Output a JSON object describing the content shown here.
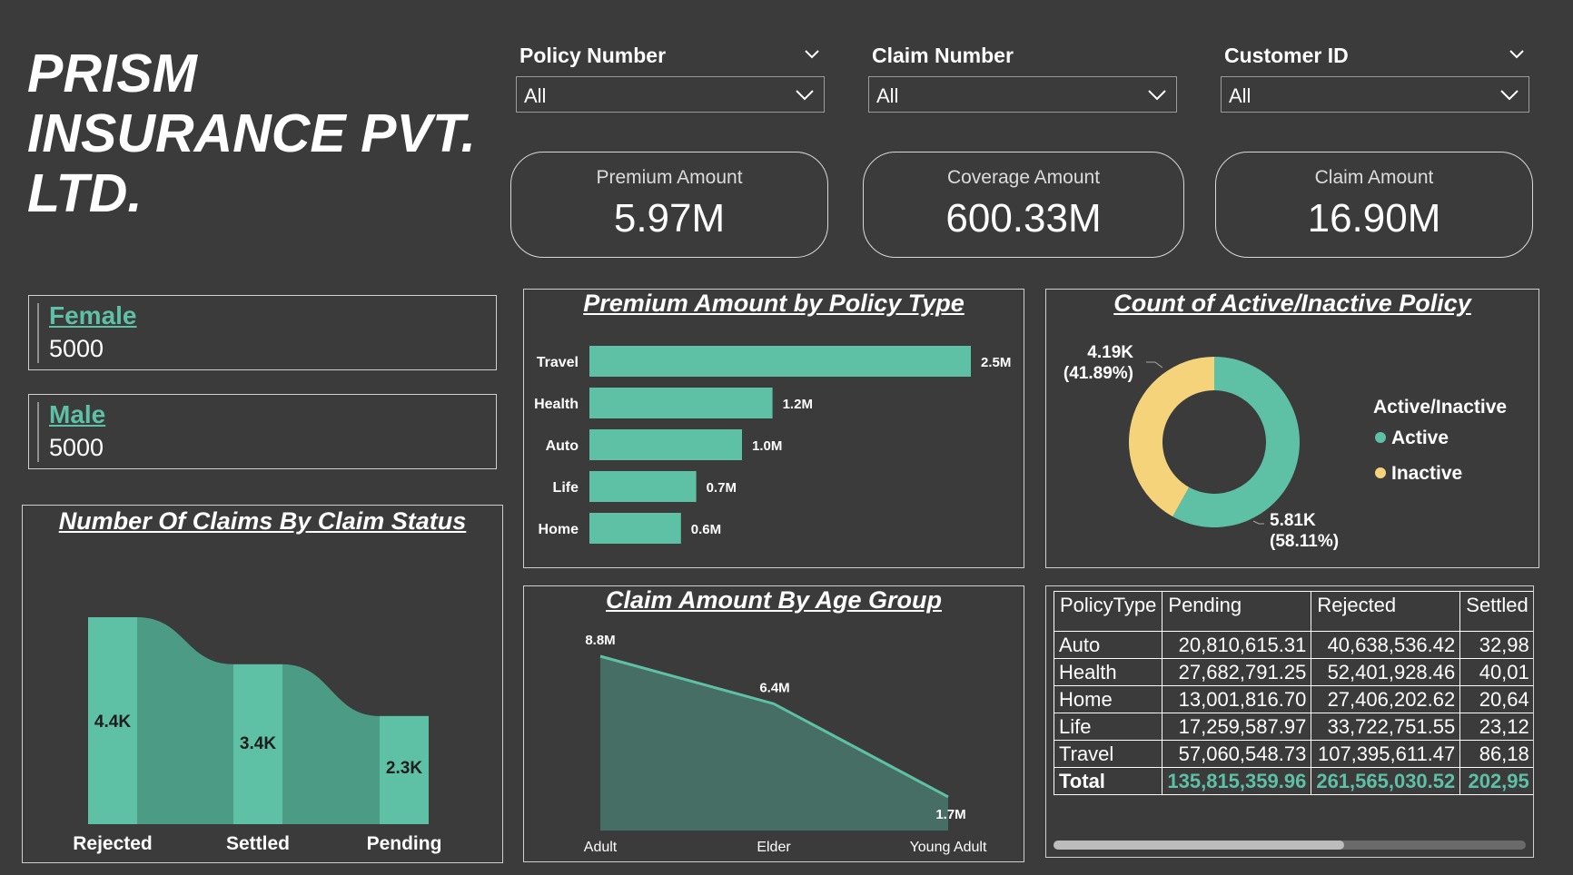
{
  "brand": {
    "line1": "PRISM",
    "line2": "INSURANCE PVT.",
    "line3": "LTD."
  },
  "slicers": [
    {
      "label": "Policy Number",
      "value": "All"
    },
    {
      "label": "Claim Number",
      "value": "All"
    },
    {
      "label": "Customer ID",
      "value": "All"
    }
  ],
  "cards": [
    {
      "label": "Premium Amount",
      "value": "5.97M"
    },
    {
      "label": "Coverage Amount",
      "value": "600.33M"
    },
    {
      "label": "Claim Amount",
      "value": "16.90M"
    }
  ],
  "gender": [
    {
      "label": "Female",
      "value": "5000"
    },
    {
      "label": "Male",
      "value": "5000"
    }
  ],
  "icons": {
    "dropdown": "chevron-down-icon",
    "legend_marker": "circle-icon"
  },
  "colors": {
    "background": "#3b3b3b",
    "accent": "#5ec0a4",
    "inactive": "#f5d37a",
    "ribbon": "#4c9c85",
    "area": "#466e64"
  },
  "chart_data": [
    {
      "type": "bar",
      "orientation": "horizontal",
      "title": "Number Of Claims By Claim Status",
      "categories": [
        "Rejected",
        "Settled",
        "Pending"
      ],
      "values": [
        4400,
        3400,
        2300
      ],
      "data_labels": [
        "4.4K",
        "3.4K",
        "2.3K"
      ],
      "ylim": [
        0,
        4400
      ]
    },
    {
      "type": "bar",
      "orientation": "horizontal",
      "title": "Premium Amount by Policy Type",
      "categories": [
        "Travel",
        "Health",
        "Auto",
        "Life",
        "Home"
      ],
      "values": [
        2.5,
        1.2,
        1.0,
        0.7,
        0.6
      ],
      "data_labels": [
        "2.5M",
        "1.2M",
        "1.0M",
        "0.7M",
        "0.6M"
      ],
      "xlim": [
        0,
        2.5
      ]
    },
    {
      "type": "pie",
      "title": "Count of Active/Inactive Policy",
      "legend_title": "Active/Inactive",
      "legend_position": "right",
      "categories": [
        "Active",
        "Inactive"
      ],
      "values": [
        5810,
        4190
      ],
      "data_labels": [
        {
          "value": "5.81K",
          "percent": "(58.11%)"
        },
        {
          "value": "4.19K",
          "percent": "(41.89%)"
        }
      ]
    },
    {
      "type": "area",
      "title": "Claim Amount By Age Group",
      "categories": [
        "Adult",
        "Elder",
        "Young Adult"
      ],
      "values": [
        8.8,
        6.4,
        1.7
      ],
      "data_labels": [
        "8.8M",
        "6.4M",
        "1.7M"
      ],
      "ylim": [
        0,
        8.8
      ]
    },
    {
      "type": "table",
      "columns": [
        "PolicyType",
        "Pending",
        "Rejected",
        "Settled"
      ],
      "rows": [
        [
          "Auto",
          "20,810,615.31",
          "40,638,536.42",
          "32,98"
        ],
        [
          "Health",
          "27,682,791.25",
          "52,401,928.46",
          "40,01"
        ],
        [
          "Home",
          "13,001,816.70",
          "27,406,202.62",
          "20,64"
        ],
        [
          "Life",
          "17,259,587.97",
          "33,722,751.55",
          "23,12"
        ],
        [
          "Travel",
          "57,060,548.73",
          "107,395,611.47",
          "86,18"
        ]
      ],
      "total": [
        "Total",
        "135,815,359.96",
        "261,565,030.52",
        "202,95"
      ]
    }
  ]
}
